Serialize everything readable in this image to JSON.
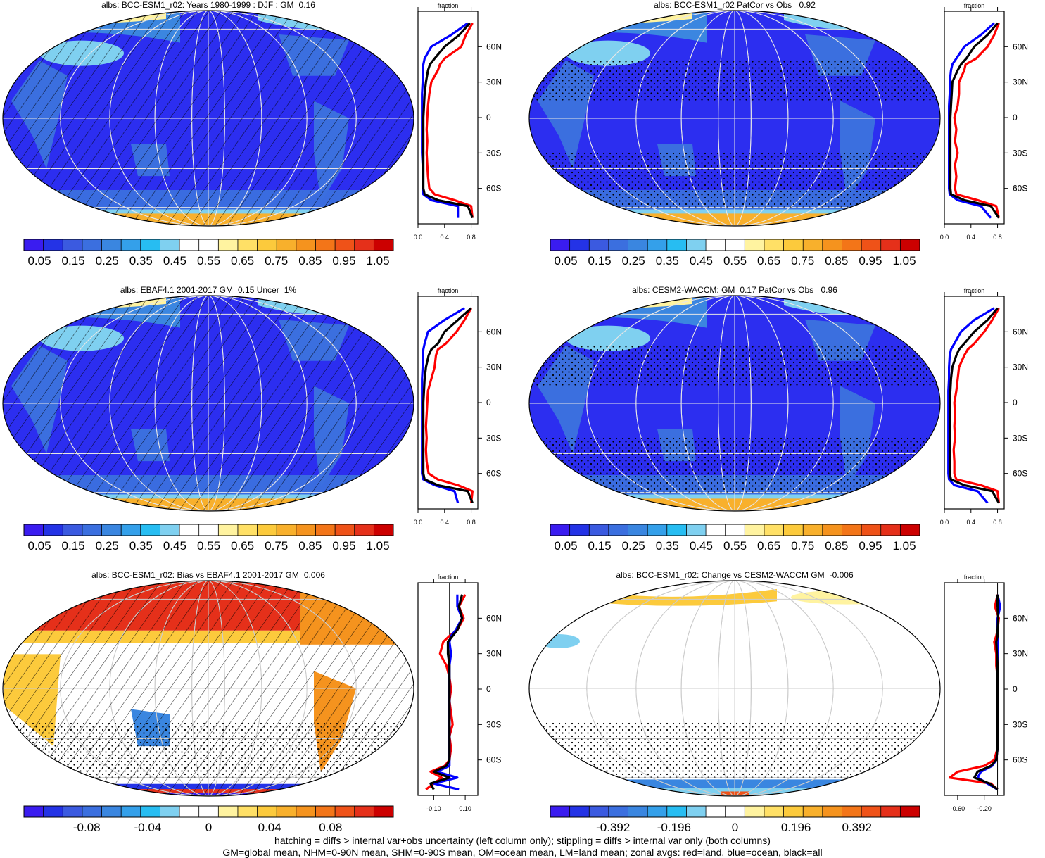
{
  "palette": {
    "full": [
      "#3a1cf0",
      "#2433e6",
      "#3b5ae0",
      "#3b6fdf",
      "#3a86e0",
      "#34a0ea",
      "#27bdf2",
      "#7fd0f0",
      "#ffffff",
      "#ffffff",
      "#fff3a0",
      "#ffe066",
      "#fcca3c",
      "#f8b02c",
      "#f5931e",
      "#f37518",
      "#ef5218",
      "#e5301a",
      "#cc0000"
    ],
    "diff": [
      "#3a1cf0",
      "#2433e6",
      "#3b5ae0",
      "#3b6fdf",
      "#3a86e0",
      "#34a0ea",
      "#27bdf2",
      "#7fd0f0",
      "#ffffff",
      "#ffffff",
      "#fff3a0",
      "#ffe066",
      "#fcca3c",
      "#f8b02c",
      "#f5931e",
      "#f37518",
      "#ef5218",
      "#e5301a",
      "#cc0000"
    ]
  },
  "panels": [
    {
      "title": "albs: BCC-ESM1_r02: Years 1980-1999 : DJF : GM=0.16",
      "colorbar_labels": [
        "0.05",
        "0.15",
        "0.25",
        "0.35",
        "0.45",
        "0.55",
        "0.65",
        "0.75",
        "0.85",
        "0.95",
        "1.05"
      ],
      "zonal_title": "fraction",
      "zonal_xticks": [
        "0.0",
        "0.4",
        "0.8"
      ],
      "lat_labels": [
        "60N",
        "30N",
        "0",
        "30S",
        "60S"
      ],
      "hatching": true,
      "stippling": false
    },
    {
      "title": "albs: BCC-ESM1_r02 PatCor vs Obs =0.92",
      "colorbar_labels": [
        "0.05",
        "0.15",
        "0.25",
        "0.35",
        "0.45",
        "0.55",
        "0.65",
        "0.75",
        "0.85",
        "0.95",
        "1.05"
      ],
      "zonal_title": "fraction",
      "zonal_xticks": [
        "0.0",
        "0.4",
        "0.8"
      ],
      "lat_labels": [
        "60N",
        "30N",
        "0",
        "30S",
        "60S"
      ],
      "hatching": false,
      "stippling": true
    },
    {
      "title": "albs: EBAF4.1 2001-2017 GM=0.15 Uncer=1%",
      "colorbar_labels": [
        "0.05",
        "0.15",
        "0.25",
        "0.35",
        "0.45",
        "0.55",
        "0.65",
        "0.75",
        "0.85",
        "0.95",
        "1.05"
      ],
      "zonal_title": "fraction",
      "zonal_xticks": [
        "0.0",
        "0.4",
        "0.8"
      ],
      "lat_labels": [
        "60N",
        "30N",
        "0",
        "30S",
        "60S"
      ],
      "hatching": true,
      "stippling": false
    },
    {
      "title": "albs: CESM2-WACCM: GM=0.17 PatCor vs Obs =0.96",
      "colorbar_labels": [
        "0.05",
        "0.15",
        "0.25",
        "0.35",
        "0.45",
        "0.55",
        "0.65",
        "0.75",
        "0.85",
        "0.95",
        "1.05"
      ],
      "zonal_title": "fraction",
      "zonal_xticks": [
        "0.0",
        "0.4",
        "0.8"
      ],
      "lat_labels": [
        "60N",
        "30N",
        "0",
        "30S",
        "60S"
      ],
      "hatching": false,
      "stippling": true
    },
    {
      "title": "albs: BCC-ESM1_r02: Bias vs EBAF4.1 2001-2017 GM=0.006",
      "colorbar_labels": [
        "-0.08",
        "-0.04",
        "0",
        "0.04",
        "0.08"
      ],
      "zonal_title": "fraction",
      "zonal_xticks": [
        "-0.10",
        "0.10"
      ],
      "lat_labels": [
        "60N",
        "30N",
        "0",
        "30S",
        "60S"
      ],
      "hatching": true,
      "stippling": true
    },
    {
      "title": "albs: BCC-ESM1_r02: Change vs CESM2-WACCM GM=-0.006",
      "colorbar_labels": [
        "-0.392",
        "-0.196",
        "0",
        "0.196",
        "0.392"
      ],
      "zonal_title": "fraction",
      "zonal_xticks": [
        "-0.60",
        "-0.20"
      ],
      "lat_labels": [
        "60N",
        "30N",
        "0",
        "30S",
        "60S"
      ],
      "hatching": false,
      "stippling": true
    }
  ],
  "chart_data": [
    {
      "type": "line",
      "title": "albs: BCC-ESM1_r02: Years 1980-1999 : DJF : GM=0.16",
      "xlabel": "fraction",
      "xlim": [
        0,
        0.9
      ],
      "ylim": [
        -90,
        90
      ],
      "lat": [
        -85,
        -75,
        -70,
        -65,
        -60,
        -50,
        -40,
        -30,
        -20,
        -10,
        0,
        10,
        20,
        30,
        40,
        45,
        50,
        60,
        70,
        80
      ],
      "series": [
        {
          "color": "#ff0000",
          "values": [
            0.82,
            0.8,
            0.55,
            0.25,
            0.17,
            0.15,
            0.14,
            0.13,
            0.14,
            0.13,
            0.14,
            0.15,
            0.17,
            0.2,
            0.3,
            0.33,
            0.4,
            0.65,
            0.72,
            0.82
          ]
        },
        {
          "color": "#0000ff",
          "values": [
            0.6,
            0.6,
            0.2,
            0.08,
            0.07,
            0.07,
            0.07,
            0.06,
            0.06,
            0.06,
            0.06,
            0.06,
            0.06,
            0.07,
            0.07,
            0.08,
            0.1,
            0.2,
            0.5,
            0.75
          ]
        },
        {
          "color": "#000000",
          "values": [
            0.82,
            0.75,
            0.3,
            0.1,
            0.08,
            0.08,
            0.08,
            0.08,
            0.08,
            0.08,
            0.08,
            0.09,
            0.1,
            0.12,
            0.15,
            0.18,
            0.25,
            0.4,
            0.62,
            0.78
          ]
        }
      ]
    },
    {
      "type": "line",
      "title": "albs: BCC-ESM1_r02 PatCor vs Obs =0.92",
      "xlabel": "fraction",
      "xlim": [
        0,
        0.9
      ],
      "ylim": [
        -90,
        90
      ],
      "lat": [
        -85,
        -75,
        -70,
        -65,
        -60,
        -50,
        -40,
        -30,
        -20,
        -10,
        0,
        10,
        20,
        30,
        40,
        45,
        50,
        60,
        70,
        80
      ],
      "series": [
        {
          "color": "#ff0000",
          "values": [
            0.82,
            0.78,
            0.5,
            0.18,
            0.16,
            0.18,
            0.16,
            0.2,
            0.16,
            0.18,
            0.15,
            0.2,
            0.22,
            0.22,
            0.3,
            0.32,
            0.48,
            0.65,
            0.75,
            0.82
          ]
        },
        {
          "color": "#0000ff",
          "values": [
            0.7,
            0.55,
            0.2,
            0.08,
            0.07,
            0.07,
            0.07,
            0.07,
            0.07,
            0.07,
            0.07,
            0.07,
            0.08,
            0.08,
            0.1,
            0.12,
            0.18,
            0.3,
            0.55,
            0.75
          ]
        },
        {
          "color": "#000000",
          "values": [
            0.82,
            0.7,
            0.3,
            0.1,
            0.09,
            0.09,
            0.09,
            0.09,
            0.09,
            0.09,
            0.09,
            0.1,
            0.11,
            0.12,
            0.2,
            0.25,
            0.33,
            0.45,
            0.65,
            0.8
          ]
        }
      ]
    },
    {
      "type": "line",
      "title": "albs: EBAF4.1 2001-2017 GM=0.15 Uncer=1%",
      "xlabel": "fraction",
      "xlim": [
        0,
        0.9
      ],
      "ylim": [
        -90,
        90
      ],
      "lat": [
        -85,
        -75,
        -70,
        -65,
        -60,
        -50,
        -40,
        -30,
        -20,
        -10,
        0,
        10,
        20,
        30,
        40,
        45,
        50,
        60,
        70,
        80
      ],
      "series": [
        {
          "color": "#ff0000",
          "values": [
            0.8,
            0.82,
            0.6,
            0.3,
            0.16,
            0.13,
            0.12,
            0.13,
            0.12,
            0.13,
            0.14,
            0.15,
            0.2,
            0.25,
            0.27,
            0.3,
            0.42,
            0.58,
            0.7,
            0.8
          ]
        },
        {
          "color": "#0000ff",
          "values": [
            0.6,
            0.55,
            0.25,
            0.08,
            0.06,
            0.06,
            0.06,
            0.06,
            0.06,
            0.06,
            0.06,
            0.06,
            0.06,
            0.07,
            0.07,
            0.08,
            0.1,
            0.15,
            0.4,
            0.7
          ]
        },
        {
          "color": "#000000",
          "values": [
            0.82,
            0.75,
            0.3,
            0.1,
            0.08,
            0.08,
            0.08,
            0.08,
            0.08,
            0.08,
            0.08,
            0.09,
            0.1,
            0.12,
            0.16,
            0.2,
            0.3,
            0.4,
            0.6,
            0.8
          ]
        }
      ]
    },
    {
      "type": "line",
      "title": "albs: CESM2-WACCM: GM=0.17 PatCor vs Obs =0.96",
      "xlabel": "fraction",
      "xlim": [
        0,
        0.9
      ],
      "ylim": [
        -90,
        90
      ],
      "lat": [
        -85,
        -75,
        -70,
        -65,
        -60,
        -50,
        -40,
        -30,
        -20,
        -10,
        0,
        10,
        20,
        30,
        40,
        45,
        50,
        60,
        70,
        80
      ],
      "series": [
        {
          "color": "#ff0000",
          "values": [
            0.82,
            0.8,
            0.55,
            0.18,
            0.15,
            0.15,
            0.14,
            0.16,
            0.15,
            0.16,
            0.15,
            0.18,
            0.2,
            0.22,
            0.3,
            0.35,
            0.45,
            0.6,
            0.72,
            0.82
          ]
        },
        {
          "color": "#0000ff",
          "values": [
            0.65,
            0.5,
            0.15,
            0.07,
            0.06,
            0.06,
            0.06,
            0.06,
            0.06,
            0.06,
            0.06,
            0.06,
            0.07,
            0.07,
            0.08,
            0.1,
            0.15,
            0.25,
            0.45,
            0.75
          ]
        },
        {
          "color": "#000000",
          "values": [
            0.82,
            0.72,
            0.3,
            0.1,
            0.08,
            0.08,
            0.08,
            0.08,
            0.08,
            0.08,
            0.08,
            0.09,
            0.1,
            0.12,
            0.18,
            0.22,
            0.3,
            0.45,
            0.65,
            0.8
          ]
        }
      ]
    },
    {
      "type": "line",
      "title": "albs: BCC-ESM1_r02: Bias vs EBAF4.1 2001-2017 GM=0.006",
      "xlabel": "fraction",
      "xlim": [
        -0.2,
        0.18
      ],
      "ylim": [
        -90,
        90
      ],
      "lat": [
        -85,
        -80,
        -75,
        -70,
        -65,
        -60,
        -50,
        -40,
        -30,
        -20,
        -10,
        0,
        10,
        20,
        30,
        40,
        45,
        50,
        60,
        70,
        80
      ],
      "series": [
        {
          "color": "#ff0000",
          "values": [
            -0.15,
            -0.1,
            -0.05,
            -0.12,
            -0.03,
            0.0,
            0.01,
            0.0,
            0.02,
            0.01,
            0.0,
            0.01,
            0.0,
            -0.02,
            -0.06,
            -0.04,
            0.0,
            0.05,
            0.09,
            0.06,
            0.1
          ]
        },
        {
          "color": "#0000ff",
          "values": [
            0.06,
            -0.1,
            0.05,
            -0.08,
            0.0,
            0.0,
            0.0,
            0.0,
            0.0,
            0.0,
            0.0,
            0.0,
            0.0,
            0.0,
            0.01,
            0.0,
            0.01,
            0.04,
            0.08,
            0.05,
            0.05
          ]
        },
        {
          "color": "#000000",
          "values": [
            -0.1,
            -0.12,
            0.0,
            -0.1,
            -0.02,
            0.0,
            0.0,
            0.0,
            0.0,
            0.0,
            0.0,
            0.0,
            0.0,
            0.0,
            -0.01,
            -0.01,
            0.02,
            0.05,
            0.08,
            0.06,
            0.08
          ]
        }
      ]
    },
    {
      "type": "line",
      "title": "albs: BCC-ESM1_r02: Change vs CESM2-WACCM GM=-0.006",
      "xlabel": "fraction",
      "xlim": [
        -0.8,
        0.1
      ],
      "ylim": [
        -90,
        90
      ],
      "lat": [
        -85,
        -80,
        -75,
        -70,
        -65,
        -60,
        -50,
        -40,
        -30,
        -20,
        -10,
        0,
        10,
        20,
        30,
        40,
        45,
        50,
        60,
        70,
        80
      ],
      "series": [
        {
          "color": "#ff0000",
          "values": [
            0.0,
            -0.1,
            -0.72,
            -0.6,
            -0.2,
            -0.05,
            0.0,
            0.0,
            0.0,
            0.0,
            0.0,
            0.0,
            0.0,
            -0.02,
            -0.02,
            -0.05,
            -0.02,
            0.0,
            0.02,
            -0.04,
            0.0
          ]
        },
        {
          "color": "#0000ff",
          "values": [
            0.0,
            -0.15,
            -0.3,
            -0.25,
            -0.08,
            -0.02,
            0.0,
            0.0,
            0.0,
            0.0,
            0.0,
            0.0,
            0.0,
            0.0,
            0.0,
            0.0,
            0.0,
            0.0,
            0.0,
            0.04,
            0.0
          ]
        },
        {
          "color": "#000000",
          "values": [
            0.0,
            -0.12,
            -0.35,
            -0.3,
            -0.1,
            -0.02,
            0.0,
            0.0,
            0.0,
            0.0,
            0.0,
            0.0,
            0.0,
            0.0,
            -0.01,
            -0.02,
            0.0,
            0.0,
            0.01,
            0.0,
            0.0
          ]
        }
      ]
    }
  ],
  "footer": {
    "line1": "hatching = diffs > internal var+obs uncertainty (left column only); stippling = diffs > internal var only (both columns)",
    "line2": "GM=global mean, NHM=0-90N mean, SHM=0-90S mean, OM=ocean mean, LM=land mean; zonal avgs: red=land, blue=ocean, black=all"
  }
}
